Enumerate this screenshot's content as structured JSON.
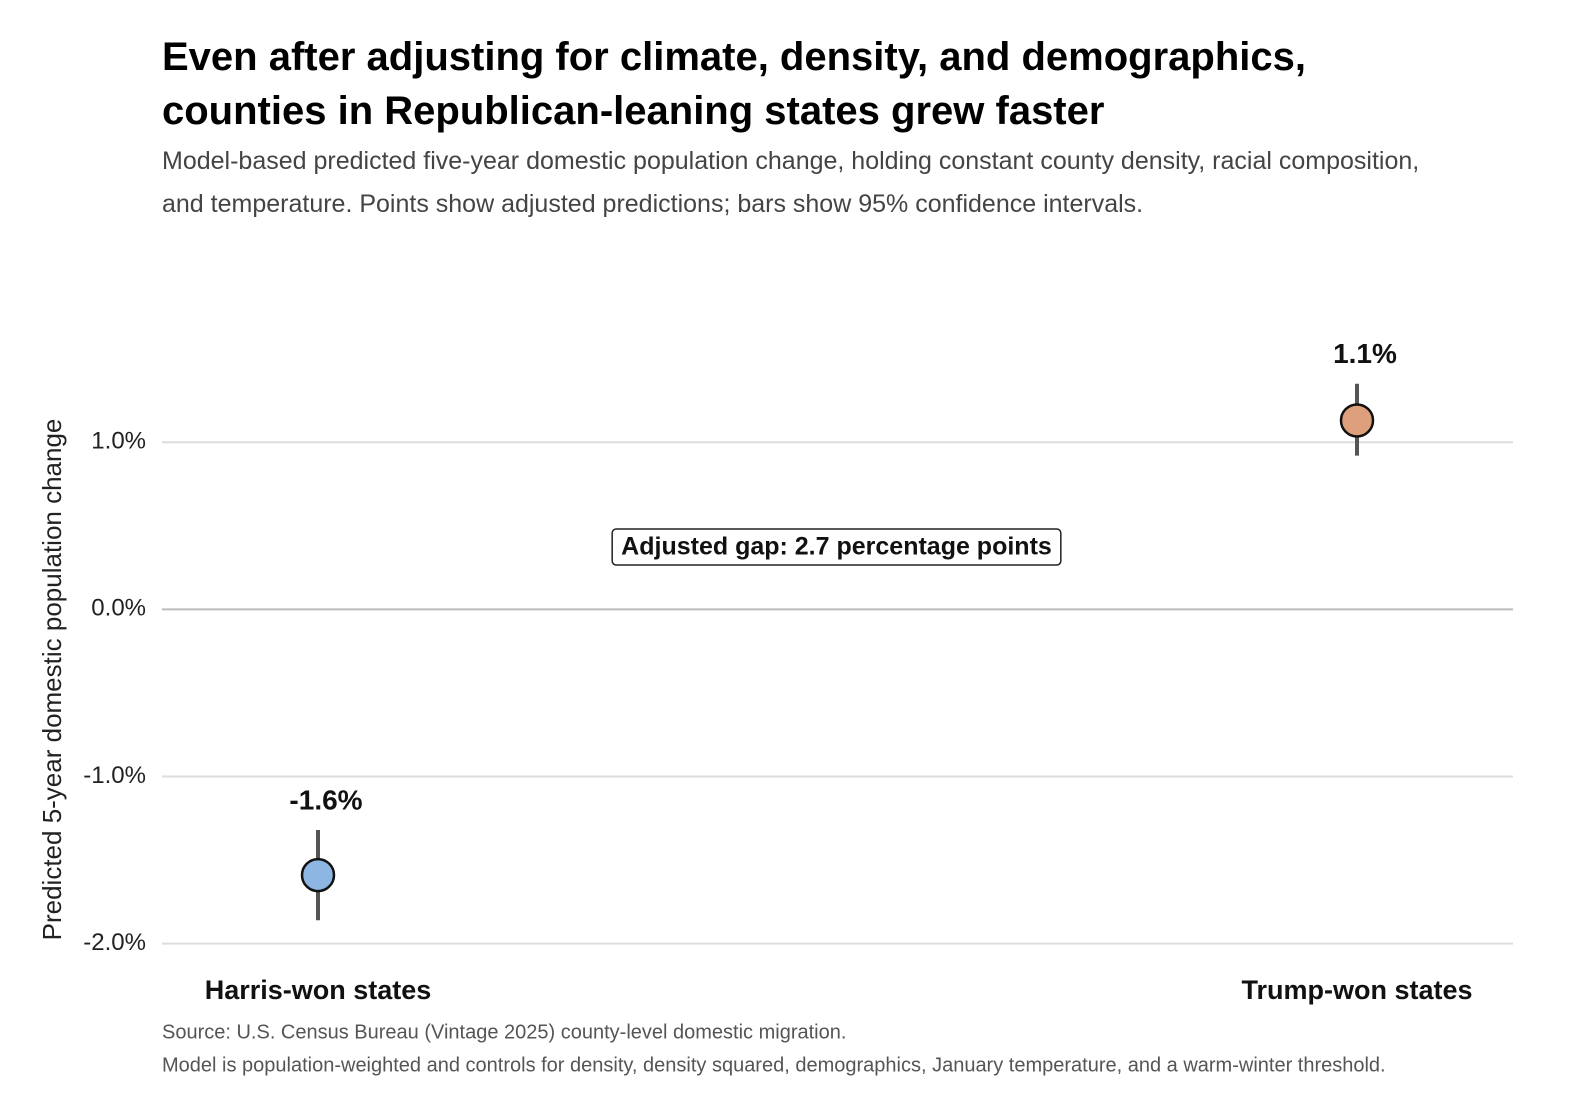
{
  "chart_data": {
    "type": "pointrange",
    "title": "Even after adjusting for climate, density, and demographics, counties in Republican-leaning states grew faster",
    "subtitle": "Model-based predicted five-year domestic population change, holding constant county density, racial composition, and temperature. Points show adjusted predictions; bars show 95% confidence intervals.",
    "y_label": "Predicted 5-year domestic population change",
    "categories": [
      "Harris-won states",
      "Trump-won states"
    ],
    "values": [
      -1.59,
      1.13
    ],
    "value_labels": [
      "-1.6%",
      "1.1%"
    ],
    "ci_low": [
      -1.86,
      0.92
    ],
    "ci_high": [
      -1.32,
      1.35
    ],
    "colors": [
      "#8db6e3",
      "#dea07c"
    ],
    "annotation": "Adjusted gap: 2.7 percentage points",
    "ylim": [
      -2.05,
      1.45
    ],
    "yticks": [
      {
        "value": -2.0,
        "label": "-2.0%"
      },
      {
        "value": -1.0,
        "label": "-1.0%"
      },
      {
        "value": 0.0,
        "label": "0.0%"
      },
      {
        "value": 1.0,
        "label": "1.0%"
      }
    ],
    "grid": true,
    "notes": [
      "Source: U.S. Census Bureau (Vintage 2025) county-level domestic migration.",
      "Model is population-weighted and controls for density, density squared, demographics, January temperature, and a warm-winter threshold."
    ]
  }
}
